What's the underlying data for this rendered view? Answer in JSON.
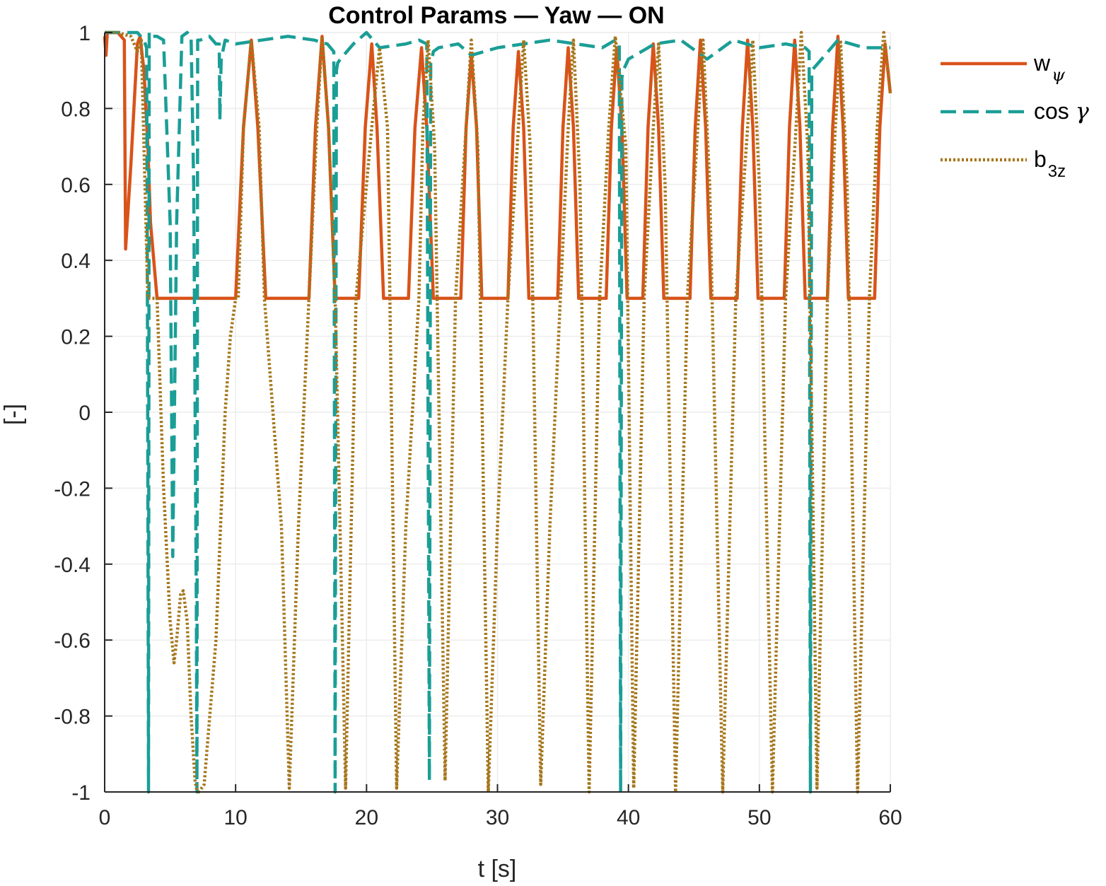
{
  "chart_data": {
    "type": "line",
    "title": "Control Params — Yaw — ON",
    "xlabel": "t [s]",
    "ylabel": "[-]",
    "xlim": [
      0,
      60
    ],
    "ylim": [
      -1,
      1
    ],
    "xticks": [
      0,
      10,
      20,
      30,
      40,
      50,
      60
    ],
    "yticks": [
      -1,
      -0.8,
      -0.6,
      -0.4,
      -0.2,
      0,
      0.2,
      0.4,
      0.6,
      0.8,
      1
    ],
    "xtick_labels": [
      "0",
      "10",
      "20",
      "30",
      "40",
      "50",
      "60"
    ],
    "ytick_labels": [
      "-1",
      "-0.8",
      "-0.6",
      "-0.4",
      "-0.2",
      "0",
      "0.2",
      "0.4",
      "0.6",
      "0.8",
      "1"
    ],
    "grid": true,
    "legend_position": "outside-right-top",
    "series": [
      {
        "name": "w_ψ",
        "legend_main": "w",
        "legend_sub": "ψ",
        "color": "#D95319",
        "style": "solid",
        "x": [
          0,
          0.1,
          0.2,
          0.3,
          0.5,
          1.0,
          1.5,
          1.6,
          2.0,
          2.5,
          2.7,
          3.0,
          3.3,
          3.5,
          4.0,
          4.3,
          10.0,
          10.6,
          11.2,
          11.7,
          12.3,
          15.6,
          16.1,
          16.6,
          17.1,
          17.6,
          19.4,
          19.9,
          20.4,
          20.8,
          21.3,
          23.2,
          23.7,
          24.2,
          24.6,
          25.1,
          27.2,
          27.6,
          28.0,
          28.4,
          28.8,
          30.8,
          31.2,
          31.6,
          32.0,
          32.4,
          34.6,
          35.0,
          35.4,
          35.8,
          36.2,
          38.3,
          38.7,
          39.1,
          39.5,
          39.9,
          41.1,
          41.5,
          41.9,
          42.3,
          42.7,
          44.7,
          45.1,
          45.5,
          45.9,
          46.3,
          48.3,
          48.7,
          49.1,
          49.5,
          49.9,
          51.9,
          52.3,
          52.7,
          53.1,
          53.5,
          55.2,
          55.6,
          56.0,
          56.4,
          56.8,
          58.8,
          59.2,
          59.6,
          60.0
        ],
        "y": [
          0.99,
          0.94,
          1.0,
          1.0,
          1.0,
          1.0,
          0.98,
          0.43,
          0.65,
          0.97,
          0.99,
          0.9,
          0.7,
          0.5,
          0.3,
          0.3,
          0.3,
          0.75,
          0.98,
          0.75,
          0.3,
          0.3,
          0.75,
          0.99,
          0.75,
          0.3,
          0.3,
          0.75,
          0.97,
          0.75,
          0.3,
          0.3,
          0.75,
          0.96,
          0.75,
          0.3,
          0.3,
          0.75,
          0.94,
          0.75,
          0.3,
          0.3,
          0.75,
          0.95,
          0.75,
          0.3,
          0.3,
          0.75,
          0.96,
          0.75,
          0.3,
          0.3,
          0.75,
          0.96,
          0.75,
          0.3,
          0.3,
          0.75,
          0.97,
          0.75,
          0.3,
          0.3,
          0.75,
          0.98,
          0.75,
          0.3,
          0.3,
          0.75,
          0.98,
          0.75,
          0.3,
          0.3,
          0.75,
          0.98,
          0.75,
          0.3,
          0.3,
          0.75,
          0.99,
          0.75,
          0.3,
          0.3,
          0.75,
          0.97,
          0.84
        ]
      },
      {
        "name": "cos γ",
        "legend_main": "cos ",
        "legend_sym": "γ",
        "color": "#1A9E96",
        "style": "dashed",
        "x": [
          0,
          2.5,
          3.0,
          3.2,
          3.25,
          3.3,
          3.35,
          3.4,
          3.5,
          4.0,
          4.5,
          5.0,
          5.2,
          5.5,
          5.9,
          6.3,
          6.6,
          6.8,
          7.0,
          7.05,
          7.1,
          7.3,
          8.0,
          8.5,
          8.75,
          8.8,
          8.9,
          9.2,
          10.0,
          12.0,
          14.0,
          16.0,
          17.0,
          17.5,
          17.6,
          17.7,
          17.8,
          18.0,
          19.0,
          20.0,
          21.0,
          23.0,
          24.0,
          24.6,
          24.8,
          24.9,
          25.0,
          25.1,
          25.5,
          27.0,
          28.0,
          30.0,
          32.0,
          34.0,
          36.0,
          38.0,
          39.0,
          39.3,
          39.4,
          39.5,
          39.6,
          40.0,
          42.0,
          44.0,
          46.0,
          48.0,
          50.0,
          52.0,
          53.5,
          53.8,
          53.9,
          54.0,
          54.5,
          56.0,
          58.0,
          60.0
        ],
        "y": [
          1.0,
          1.0,
          0.98,
          0.96,
          0.5,
          -0.2,
          -1.0,
          1.0,
          0.99,
          0.99,
          0.98,
          0.5,
          -0.38,
          0.5,
          0.99,
          1.0,
          0.99,
          0.6,
          -0.5,
          -1.0,
          0.98,
          0.98,
          0.99,
          0.97,
          0.97,
          0.77,
          0.93,
          0.98,
          0.97,
          0.98,
          0.99,
          0.98,
          0.97,
          0.95,
          -1.0,
          0.9,
          0.92,
          0.93,
          0.97,
          1.0,
          0.96,
          0.97,
          0.98,
          0.97,
          -0.97,
          0.92,
          0.93,
          0.95,
          0.96,
          0.97,
          0.94,
          0.96,
          0.97,
          0.98,
          0.97,
          0.96,
          0.98,
          0.97,
          -1.0,
          0.88,
          0.9,
          0.93,
          0.97,
          0.98,
          0.93,
          0.98,
          0.96,
          0.97,
          0.96,
          0.95,
          -1.0,
          0.9,
          0.92,
          0.98,
          0.96,
          0.96
        ]
      },
      {
        "name": "b_3z",
        "legend_main": "b",
        "legend_sub": "3z",
        "color": "#A5761B",
        "style": "dotted",
        "x": [
          0,
          1.0,
          2.0,
          2.5,
          2.8,
          3.0,
          3.3,
          4.0,
          4.5,
          5.0,
          5.3,
          5.5,
          5.8,
          6.0,
          6.3,
          6.6,
          6.9,
          7.0,
          7.2,
          7.6,
          8.5,
          9.2,
          9.6,
          10.0,
          10.2,
          10.6,
          11.2,
          11.8,
          12.2,
          13.5,
          14.1,
          14.8,
          15.6,
          16.2,
          16.6,
          17.1,
          17.6,
          18.4,
          19.2,
          20.4,
          21.0,
          21.6,
          22.3,
          23.0,
          24.0,
          24.3,
          24.7,
          25.2,
          26.0,
          26.8,
          27.6,
          28.0,
          28.5,
          29.3,
          30.0,
          30.8,
          31.6,
          32.0,
          32.5,
          33.3,
          34.0,
          34.8,
          35.4,
          35.8,
          36.3,
          37.0,
          37.8,
          38.5,
          39.0,
          39.3,
          39.8,
          40.4,
          41.2,
          41.9,
          42.3,
          42.8,
          43.6,
          44.5,
          45.3,
          45.7,
          46.2,
          47.2,
          48.2,
          49.1,
          49.5,
          50.0,
          51.0,
          52.0,
          52.8,
          53.2,
          53.7,
          54.4,
          55.2,
          55.8,
          56.2,
          56.7,
          57.5,
          58.4,
          59.0,
          59.5,
          60.0
        ],
        "y": [
          1.0,
          1.0,
          0.99,
          0.95,
          0.98,
          0.7,
          0.3,
          0.3,
          -0.2,
          -0.55,
          -0.66,
          -0.6,
          -0.48,
          -0.47,
          -0.55,
          -0.8,
          -0.97,
          -0.99,
          -1.0,
          -0.98,
          -0.6,
          0.0,
          0.2,
          0.3,
          0.3,
          0.75,
          0.98,
          0.75,
          0.3,
          -0.3,
          -0.99,
          -0.3,
          0.3,
          0.75,
          0.99,
          0.75,
          0.3,
          -0.99,
          0.3,
          0.75,
          0.96,
          0.75,
          -0.99,
          -0.3,
          0.3,
          0.75,
          0.98,
          0.7,
          -0.97,
          0.3,
          0.75,
          0.98,
          0.7,
          -1.0,
          -0.3,
          0.3,
          0.75,
          0.98,
          0.7,
          -0.98,
          -0.3,
          0.3,
          0.75,
          0.98,
          0.6,
          -1.0,
          0.3,
          0.75,
          0.99,
          0.88,
          0.7,
          -0.99,
          0.3,
          0.75,
          0.97,
          0.6,
          -1.0,
          0.3,
          0.75,
          0.98,
          0.6,
          -1.0,
          0.3,
          0.75,
          0.98,
          0.6,
          -1.0,
          0.3,
          0.75,
          1.0,
          0.7,
          -0.99,
          0.3,
          0.75,
          0.98,
          0.6,
          -1.0,
          0.3,
          0.75,
          1.0,
          0.84
        ]
      }
    ]
  }
}
